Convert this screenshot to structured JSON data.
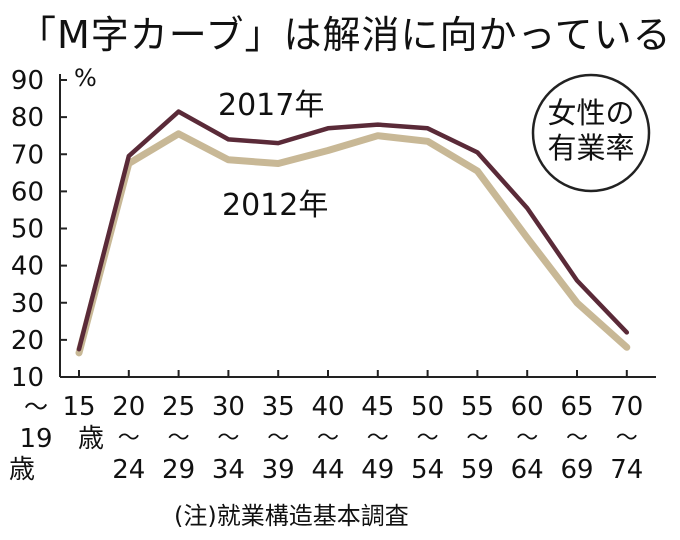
{
  "title": "「M字カーブ」は解消に向かっている",
  "note": "(注)就業構造基本調査",
  "chart_data": {
    "type": "line",
    "title": "「M字カーブ」は解消に向かっている",
    "unit": "%",
    "badge": [
      "女性の",
      "有業率"
    ],
    "ylim": [
      10,
      90
    ],
    "yticks": [
      10,
      20,
      30,
      40,
      50,
      60,
      70,
      80,
      90
    ],
    "categories": [
      {
        "top": "15",
        "mid": "歳",
        "bottom": "",
        "left": [
          "〜",
          "19",
          "歳"
        ]
      },
      {
        "top": "20",
        "mid": "〜",
        "bottom": "24"
      },
      {
        "top": "25",
        "mid": "〜",
        "bottom": "29"
      },
      {
        "top": "30",
        "mid": "〜",
        "bottom": "34"
      },
      {
        "top": "35",
        "mid": "〜",
        "bottom": "39"
      },
      {
        "top": "40",
        "mid": "〜",
        "bottom": "44"
      },
      {
        "top": "45",
        "mid": "〜",
        "bottom": "49"
      },
      {
        "top": "50",
        "mid": "〜",
        "bottom": "54"
      },
      {
        "top": "55",
        "mid": "〜",
        "bottom": "59"
      },
      {
        "top": "60",
        "mid": "〜",
        "bottom": "64"
      },
      {
        "top": "65",
        "mid": "〜",
        "bottom": "69"
      },
      {
        "top": "70",
        "mid": "〜",
        "bottom": "74"
      }
    ],
    "series": [
      {
        "name": "2017年",
        "color": "#5a2a38",
        "values": [
          17.5,
          69.5,
          81.5,
          74.0,
          73.0,
          77.0,
          78.0,
          77.0,
          70.5,
          55.5,
          36.0,
          22.0
        ]
      },
      {
        "name": "2012年",
        "color": "#c8b896",
        "values": [
          16.5,
          67.5,
          75.5,
          68.5,
          67.5,
          71.0,
          75.0,
          73.5,
          65.5,
          47.5,
          30.0,
          18.0
        ]
      }
    ],
    "grid": false,
    "legend": "inline labels"
  }
}
